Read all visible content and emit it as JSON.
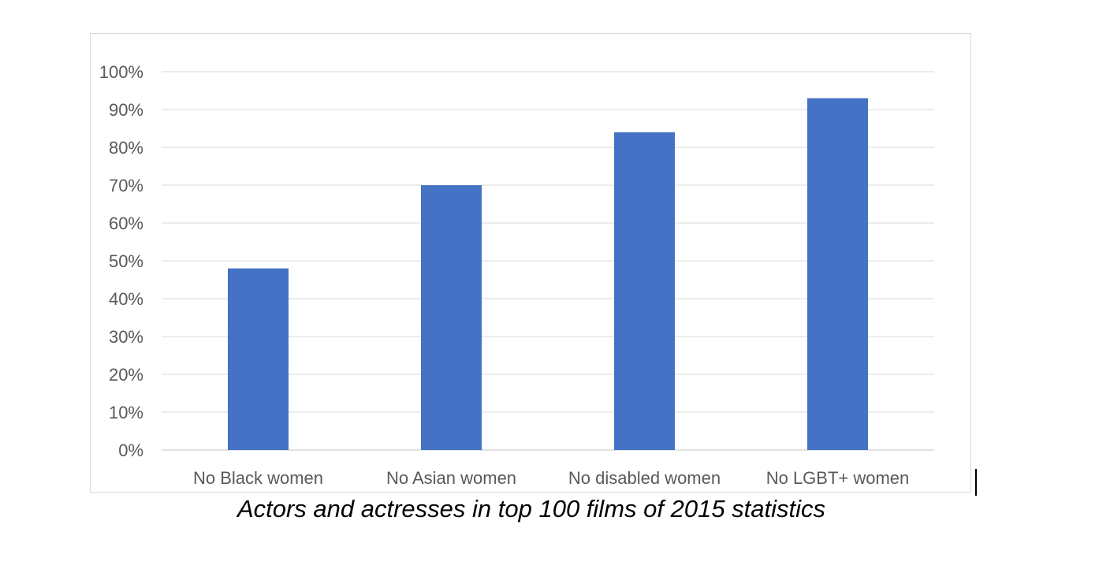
{
  "caption": "Actors and actresses in top 100 films of 2015 statistics",
  "colors": {
    "bar": "#4472C4",
    "grid": "#d9d9d9",
    "axis_text": "#595959",
    "frame": "#d9d9d9"
  },
  "chart_data": {
    "type": "bar",
    "categories": [
      "No Black women",
      "No Asian women",
      "No disabled women",
      "No LGBT+ women"
    ],
    "values": [
      48,
      70,
      84,
      93
    ],
    "title": "",
    "xlabel": "",
    "ylabel": "",
    "ylim": [
      0,
      100
    ],
    "ytick_values": [
      0,
      10,
      20,
      30,
      40,
      50,
      60,
      70,
      80,
      90,
      100
    ],
    "ytick_labels": [
      "0%",
      "10%",
      "20%",
      "30%",
      "40%",
      "50%",
      "60%",
      "70%",
      "80%",
      "90%",
      "100%"
    ],
    "grid": true,
    "legend": "none"
  }
}
